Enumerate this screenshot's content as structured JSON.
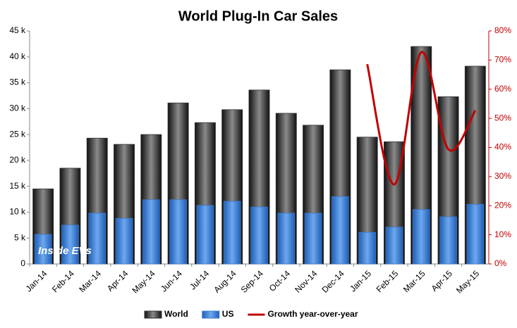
{
  "chart_data": {
    "type": "bar",
    "title": "World Plug-In Car Sales",
    "annotation": "Inside EVs",
    "categories": [
      "Jan-14",
      "Feb-14",
      "Mar-14",
      "Apr-14",
      "May-14",
      "Jun-14",
      "Jul-14",
      "Aug-14",
      "Sep-14",
      "Oct-14",
      "Nov-14",
      "Dec-14",
      "Jan-15",
      "Feb-15",
      "Mar-15",
      "Apr-15",
      "May-15"
    ],
    "series": [
      {
        "name": "World",
        "color": "#333333",
        "values": [
          14500,
          18500,
          24300,
          23100,
          25000,
          31100,
          27300,
          29800,
          33600,
          29100,
          26800,
          37500,
          24500,
          23600,
          42000,
          32300,
          38200
        ]
      },
      {
        "name": "US",
        "color": "#3a7bd5",
        "values": [
          5700,
          7500,
          9800,
          8800,
          12400,
          12400,
          11300,
          12100,
          11000,
          9800,
          9800,
          13000,
          6100,
          7100,
          10500,
          9100,
          11500
        ]
      },
      {
        "name": "Growth year-over-year",
        "type": "line",
        "axis": "y2",
        "color": "#c00000",
        "values": [
          null,
          null,
          null,
          null,
          null,
          null,
          null,
          null,
          null,
          null,
          null,
          null,
          68.6,
          27.3,
          72.7,
          39.4,
          52.7
        ]
      }
    ],
    "ylim": [
      0,
      45000
    ],
    "yticks": [
      0,
      {
        "value": 5000,
        "label": "5 k"
      },
      {
        "value": 10000,
        "label": "10 k"
      },
      {
        "value": 15000,
        "label": "15 k"
      },
      {
        "value": 20000,
        "label": "20 k"
      },
      {
        "value": 25000,
        "label": "25 k"
      },
      {
        "value": 30000,
        "label": "30 k"
      },
      {
        "value": 35000,
        "label": "35 k"
      },
      {
        "value": 40000,
        "label": "40 k"
      },
      {
        "value": 45000,
        "label": "45 k"
      }
    ],
    "y2lim": [
      0,
      80
    ],
    "y2ticks": [
      {
        "value": 0,
        "label": "0%"
      },
      {
        "value": 10,
        "label": "10%"
      },
      {
        "value": 20,
        "label": "20%"
      },
      {
        "value": 30,
        "label": "30%"
      },
      {
        "value": 40,
        "label": "40%"
      },
      {
        "value": 50,
        "label": "50%"
      },
      {
        "value": 60,
        "label": "60%"
      },
      {
        "value": 70,
        "label": "70%"
      },
      {
        "value": 80,
        "label": "80%"
      }
    ],
    "grid": false,
    "legend": "bottom"
  }
}
